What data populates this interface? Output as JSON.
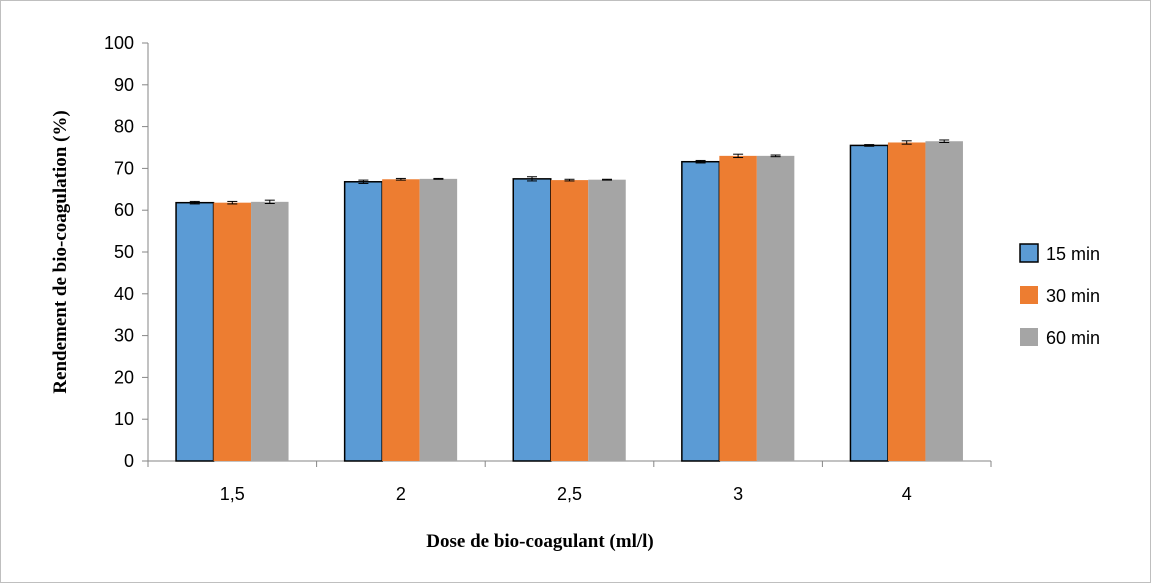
{
  "chart_data": {
    "type": "bar",
    "categories": [
      "1,5",
      "2",
      "2,5",
      "3",
      "4"
    ],
    "series": [
      {
        "name": "15 min",
        "color": "#5B9BD5",
        "outlined": true,
        "values": [
          61.8,
          66.8,
          67.5,
          71.6,
          75.5
        ],
        "errors": [
          0.3,
          0.4,
          0.5,
          0.3,
          0.2
        ]
      },
      {
        "name": "30 min",
        "color": "#ED7D31",
        "outlined": false,
        "values": [
          61.8,
          67.4,
          67.2,
          73.0,
          76.2
        ],
        "errors": [
          0.3,
          0.2,
          0.2,
          0.4,
          0.4
        ]
      },
      {
        "name": "60 min",
        "color": "#A5A5A5",
        "outlined": false,
        "values": [
          62.0,
          67.5,
          67.3,
          73.0,
          76.5
        ],
        "errors": [
          0.4,
          0.1,
          0.1,
          0.2,
          0.3
        ]
      }
    ],
    "title": "",
    "xlabel": "Dose de bio-coagulant (ml/l)",
    "ylabel": "Rendement de bio-coagulation (%)",
    "ylim": [
      0,
      100
    ],
    "yticks": [
      0,
      10,
      20,
      30,
      40,
      50,
      60,
      70,
      80,
      90,
      100
    ],
    "grid": false,
    "error_bars": true,
    "legend_position": "right"
  }
}
